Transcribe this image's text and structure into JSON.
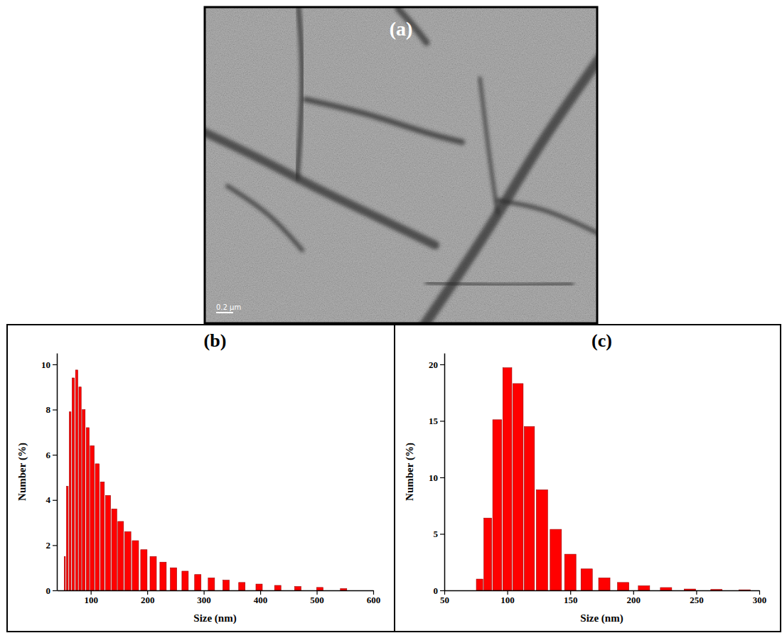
{
  "chart_data": [
    {
      "type": "image",
      "title": "(a)",
      "annotations": [
        "0.2 μm"
      ]
    },
    {
      "type": "histogram",
      "title": "(b)",
      "x_label": "Size (nm)",
      "y_label": "Number (%)",
      "bins": [
        52,
        56,
        61,
        66,
        72,
        78,
        84,
        91,
        98,
        107,
        116,
        125,
        136,
        147,
        159,
        172,
        186,
        202,
        219,
        237,
        256,
        278,
        301,
        326,
        353,
        382,
        414,
        448,
        485,
        526,
        569
      ],
      "values": [
        1.5,
        4.6,
        7.9,
        9.4,
        9.75,
        9.0,
        8.0,
        7.2,
        6.4,
        5.6,
        4.8,
        4.2,
        3.6,
        3.05,
        2.6,
        2.2,
        1.8,
        1.5,
        1.25,
        1.0,
        0.85,
        0.7,
        0.55,
        0.45,
        0.35,
        0.28,
        0.22,
        0.17,
        0.13,
        0.08
      ],
      "color": "#ff0000",
      "xlim": [
        40,
        600
      ],
      "xticks": [
        100,
        200,
        300,
        400,
        500,
        600
      ],
      "ylim": [
        0,
        10.5
      ],
      "yticks": [
        0,
        2,
        4,
        6,
        8,
        10
      ]
    },
    {
      "type": "histogram",
      "title": "(c)",
      "x_label": "Size (nm)",
      "y_label": "Number (%)",
      "bins": [
        75,
        81,
        88,
        96,
        104,
        113,
        122,
        133,
        144,
        156,
        170,
        184,
        200,
        217,
        235,
        255,
        277,
        300
      ],
      "values": [
        1.0,
        6.4,
        15.1,
        19.7,
        18.3,
        14.5,
        8.9,
        5.4,
        3.2,
        1.9,
        1.1,
        0.7,
        0.4,
        0.25,
        0.12,
        0.08,
        0.05
      ],
      "color": "#ff0000",
      "xlim": [
        50,
        300
      ],
      "xticks": [
        50,
        100,
        150,
        200,
        250,
        300
      ],
      "ylim": [
        0,
        21
      ],
      "yticks": [
        0,
        5,
        10,
        15,
        20
      ]
    }
  ]
}
